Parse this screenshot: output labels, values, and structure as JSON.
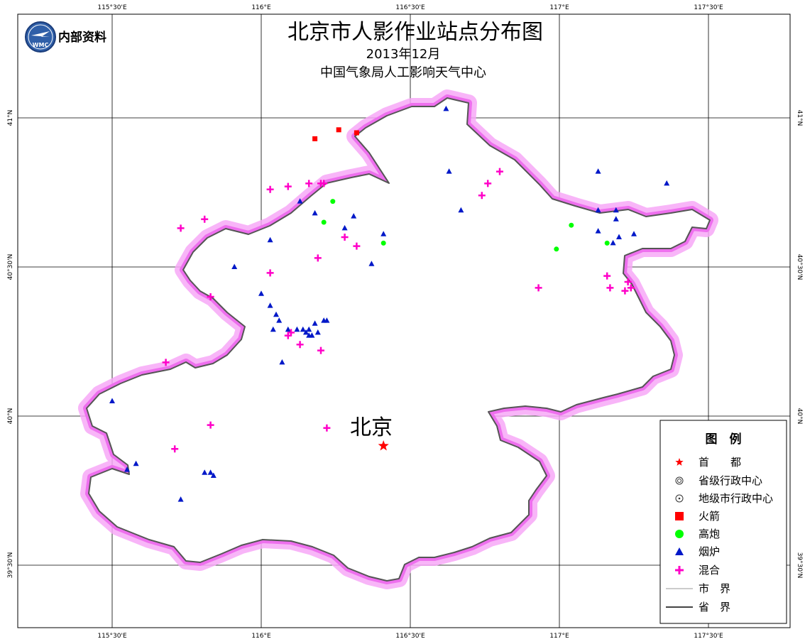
{
  "map": {
    "title": "北京市人影作业站点分布图",
    "date": "2013年12月",
    "agency": "中国气象局人工影响天气中心",
    "logo_label": "WMC",
    "internal_label": "内部资料",
    "capital_label": "北京",
    "x_ticks": [
      "115°30'E",
      "116°E",
      "116°30'E",
      "117°E",
      "117°30'E"
    ],
    "y_ticks": [
      "41°N",
      "40°30'N",
      "40°N",
      "39°30'N"
    ],
    "colors": {
      "border": "#555555",
      "buffer_outer": "#f7a8f7",
      "buffer_inner": "#ee6fee",
      "rocket": "#ff0000",
      "cannon": "#00ff00",
      "burner": "#0018c8",
      "mixed": "#ff00c8",
      "capital": "#ff0000"
    },
    "stations": {
      "rocket": [
        [
          116.18,
          40.93
        ],
        [
          116.26,
          40.96
        ],
        [
          116.32,
          40.95
        ]
      ],
      "cannon": [
        [
          116.24,
          40.72
        ],
        [
          116.21,
          40.65
        ],
        [
          116.41,
          40.58
        ],
        [
          117.04,
          40.64
        ],
        [
          116.99,
          40.56
        ],
        [
          117.16,
          40.58
        ]
      ],
      "burner": [
        [
          116.62,
          41.03
        ],
        [
          116.63,
          40.82
        ],
        [
          116.67,
          40.69
        ],
        [
          116.37,
          40.51
        ],
        [
          116.13,
          40.72
        ],
        [
          116.18,
          40.68
        ],
        [
          116.31,
          40.67
        ],
        [
          116.28,
          40.63
        ],
        [
          116.41,
          40.61
        ],
        [
          116.03,
          40.59
        ],
        [
          115.91,
          40.5
        ],
        [
          116.0,
          40.41
        ],
        [
          116.03,
          40.37
        ],
        [
          116.05,
          40.34
        ],
        [
          116.06,
          40.32
        ],
        [
          116.09,
          40.29
        ],
        [
          116.12,
          40.29
        ],
        [
          116.15,
          40.28
        ],
        [
          116.19,
          40.28
        ],
        [
          116.14,
          40.29
        ],
        [
          116.17,
          40.27
        ],
        [
          116.16,
          40.27
        ],
        [
          116.18,
          40.31
        ],
        [
          116.21,
          40.32
        ],
        [
          116.22,
          40.32
        ],
        [
          116.16,
          40.29
        ],
        [
          116.04,
          40.29
        ],
        [
          116.07,
          40.18
        ],
        [
          115.5,
          40.05
        ],
        [
          115.58,
          39.84
        ],
        [
          115.55,
          39.82
        ],
        [
          115.73,
          39.72
        ],
        [
          115.81,
          39.81
        ],
        [
          115.83,
          39.81
        ],
        [
          115.84,
          39.8
        ],
        [
          117.13,
          40.82
        ],
        [
          117.13,
          40.69
        ],
        [
          117.19,
          40.69
        ],
        [
          117.19,
          40.66
        ],
        [
          117.13,
          40.62
        ],
        [
          117.2,
          40.6
        ],
        [
          117.18,
          40.58
        ],
        [
          117.25,
          40.61
        ],
        [
          117.36,
          40.78
        ]
      ],
      "mixed": [
        [
          116.16,
          40.78
        ],
        [
          116.2,
          40.78
        ],
        [
          116.21,
          40.78
        ],
        [
          116.09,
          40.77
        ],
        [
          116.03,
          40.76
        ],
        [
          115.81,
          40.66
        ],
        [
          115.73,
          40.63
        ],
        [
          116.28,
          40.6
        ],
        [
          116.32,
          40.57
        ],
        [
          116.19,
          40.53
        ],
        [
          116.03,
          40.48
        ],
        [
          115.83,
          40.4
        ],
        [
          116.1,
          40.28
        ],
        [
          116.09,
          40.27
        ],
        [
          116.13,
          40.24
        ],
        [
          116.2,
          40.22
        ],
        [
          115.68,
          40.18
        ],
        [
          115.83,
          39.97
        ],
        [
          115.71,
          39.89
        ],
        [
          116.22,
          39.96
        ],
        [
          116.8,
          40.82
        ],
        [
          116.76,
          40.78
        ],
        [
          116.74,
          40.74
        ],
        [
          116.93,
          40.43
        ],
        [
          117.16,
          40.47
        ],
        [
          117.22,
          40.42
        ],
        [
          117.24,
          40.43
        ],
        [
          117.23,
          40.45
        ],
        [
          117.17,
          40.43
        ]
      ],
      "capital": [
        116.41,
        39.9
      ]
    },
    "legend": {
      "title": "图　例",
      "items": [
        {
          "label": "首　　都",
          "symbol": "capital"
        },
        {
          "label": "省级行政中心",
          "symbol": "provincial"
        },
        {
          "label": "地级市行政中心",
          "symbol": "prefecture"
        },
        {
          "label": "火箭",
          "symbol": "rocket"
        },
        {
          "label": "高炮",
          "symbol": "cannon"
        },
        {
          "label": "烟炉",
          "symbol": "burner"
        },
        {
          "label": "混合",
          "symbol": "mixed"
        },
        {
          "label": "市　界",
          "symbol": "city-border"
        },
        {
          "label": "省　界",
          "symbol": "province-border"
        }
      ]
    }
  }
}
